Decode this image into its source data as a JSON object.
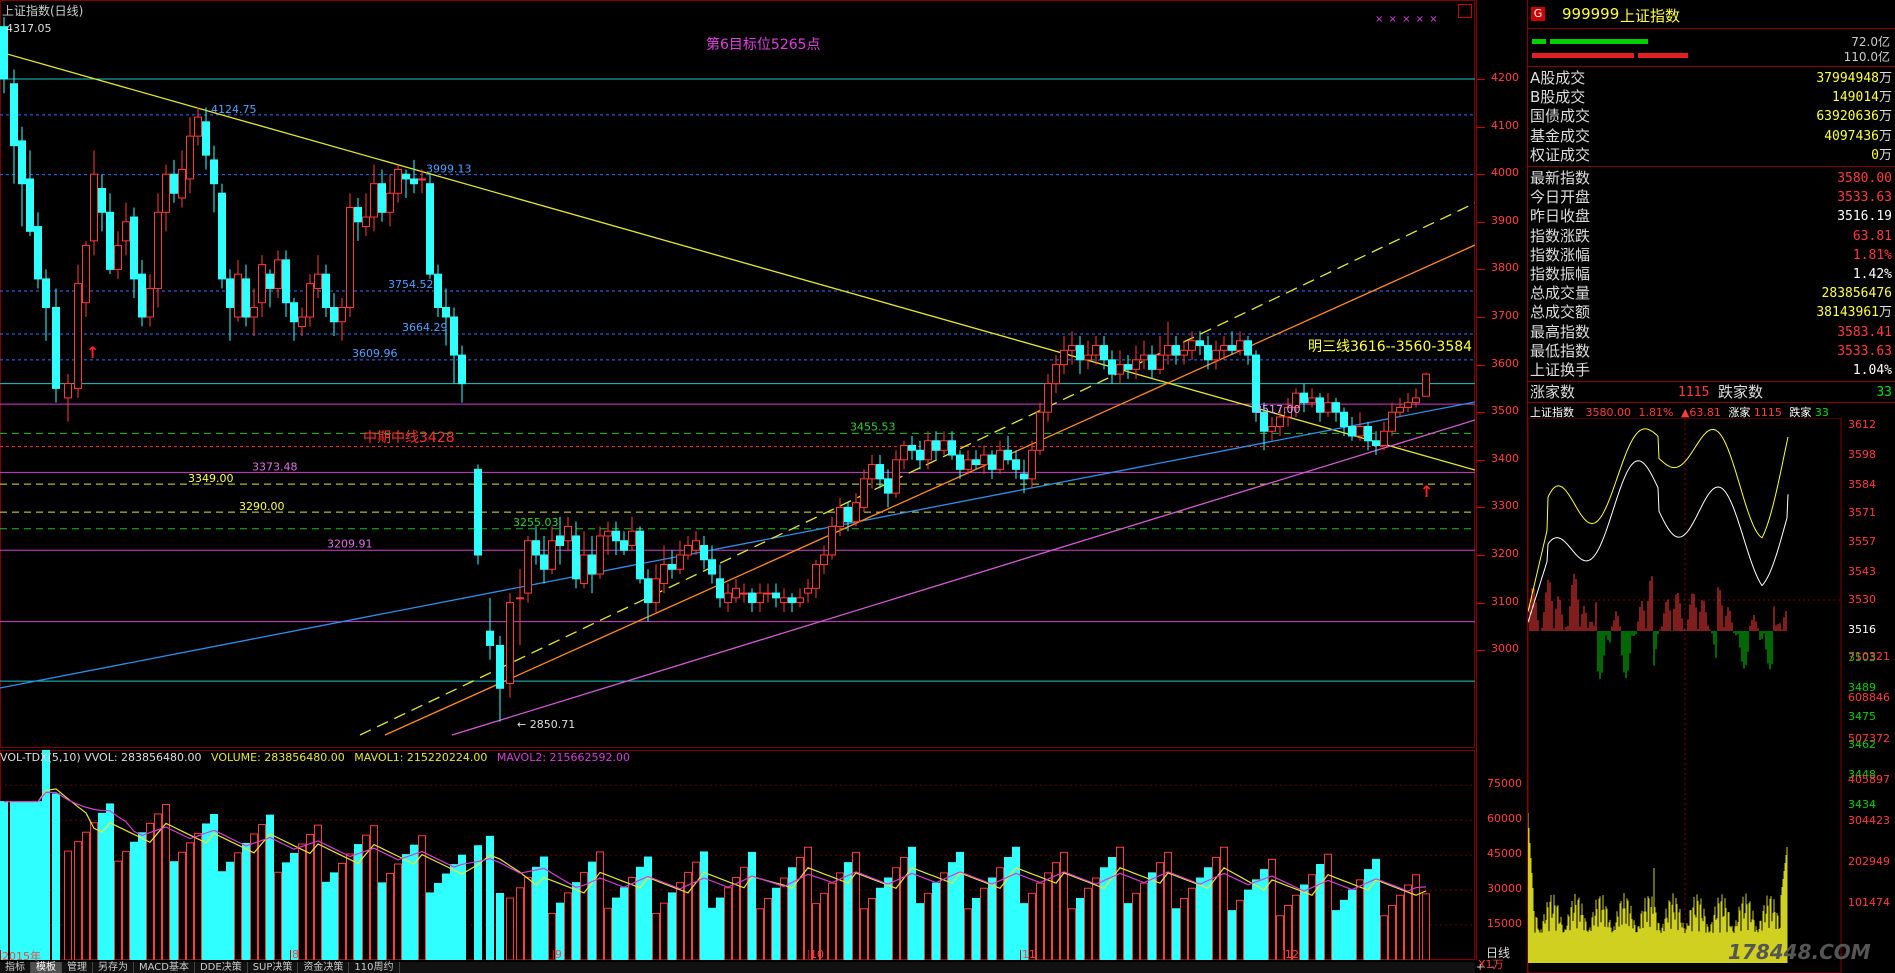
{
  "window": {
    "title": "上证指数(日线)",
    "top_marker_value": "4317.05",
    "corner_stars": "× × × × ×"
  },
  "annotations": {
    "target_text": "第6目标位5265点",
    "mid_line_text": "中期中线3428",
    "ming_san_text": "明三线3616--3560-3584"
  },
  "level_labels": [
    "4124.75",
    "3999.13",
    "3754.52",
    "3664.29",
    "3609.96",
    "3517.00",
    "3455.53",
    "3373.48",
    "3349.00",
    "3290.00",
    "3255.03",
    "3209.91",
    "2850.71"
  ],
  "price_axis": [
    "4200",
    "4100",
    "4000",
    "3900",
    "3800",
    "3700",
    "3600",
    "3500",
    "3400",
    "3300",
    "3200",
    "3100",
    "3000"
  ],
  "month_labels": [
    "2015年",
    "8",
    "9",
    "10",
    "11",
    "12"
  ],
  "volume_header": {
    "name": "VOL-TDX(5,10)",
    "vvol": "VVOL: 283856480.00",
    "volume": "VOLUME: 283856480.00",
    "mavol1": "MAVOL1: 215220224.00",
    "mavol2": "MAVOL2: 215662592.00"
  },
  "volume_axis": [
    "75000",
    "60000",
    "45000",
    "30000",
    "15000"
  ],
  "volume_unit": "X1万",
  "bottom_tabs": [
    "指标",
    "模板",
    "管理",
    "另存为",
    "MACD基本",
    "DDE决策",
    "SUP决策",
    "资金决策",
    "110周约"
  ],
  "bottom_right_label": "日线",
  "side_panel": {
    "code": "999999",
    "name": "上证指数",
    "badge": "G",
    "bar_values": [
      "72.0亿",
      "110.0亿"
    ],
    "turnover_rows": [
      {
        "label": "A股成交",
        "value": "37994948万"
      },
      {
        "label": "B股成交",
        "value": "149014万"
      },
      {
        "label": "国债成交",
        "value": "63920636万"
      },
      {
        "label": "基金成交",
        "value": "4097436万"
      },
      {
        "label": "权证成交",
        "value": "0万"
      }
    ],
    "quote_rows": [
      {
        "label": "最新指数",
        "value": "3580.00",
        "color": "red"
      },
      {
        "label": "今日开盘",
        "value": "3533.63",
        "color": "red"
      },
      {
        "label": "昨日收盘",
        "value": "3516.19",
        "color": "white"
      },
      {
        "label": "指数涨跌",
        "value": "63.81",
        "color": "red"
      },
      {
        "label": "指数涨幅",
        "value": "1.81%",
        "color": "red"
      },
      {
        "label": "指数振幅",
        "value": "1.42%",
        "color": "white"
      },
      {
        "label": "总成交量",
        "value": "283856476",
        "color": "yellow"
      },
      {
        "label": "总成交额",
        "value": "38143961万",
        "color": "yellow"
      },
      {
        "label": "最高指数",
        "value": "3583.41",
        "color": "red"
      },
      {
        "label": "最低指数",
        "value": "3533.63",
        "color": "red"
      },
      {
        "label": "上证换手",
        "value": "1.04%",
        "color": "white"
      }
    ],
    "up_label": "涨家数",
    "up_value": "1115",
    "down_label": "跌家数",
    "down_value": "33",
    "mini_header": {
      "name": "上证指数",
      "price": "3580.00",
      "pct": "1.81%",
      "change": "▲63.81",
      "up_label": "涨家",
      "up": "1115",
      "down_label": "跌家",
      "down": "33"
    },
    "mini_price_axis": [
      "3612",
      "3598",
      "3584",
      "3571",
      "3557",
      "3543",
      "3530",
      "3516",
      "3503",
      "3489",
      "3475",
      "3462",
      "3448",
      "3434"
    ],
    "mini_vol_axis": [
      "710321",
      "608846",
      "507372",
      "405897",
      "304423",
      "202949",
      "101474"
    ],
    "watermark": "178448.COM"
  },
  "chart_data": {
    "type": "candlestick",
    "period": "daily",
    "y_range": [
      2800,
      4350
    ],
    "last": {
      "open": 3533.63,
      "high": 3583.41,
      "low": 3533.63,
      "close": 3580.0
    },
    "key_lows": [
      3373.48,
      2850.71
    ],
    "key_highs": [
      4317.05,
      4124.75,
      3999.13
    ]
  }
}
